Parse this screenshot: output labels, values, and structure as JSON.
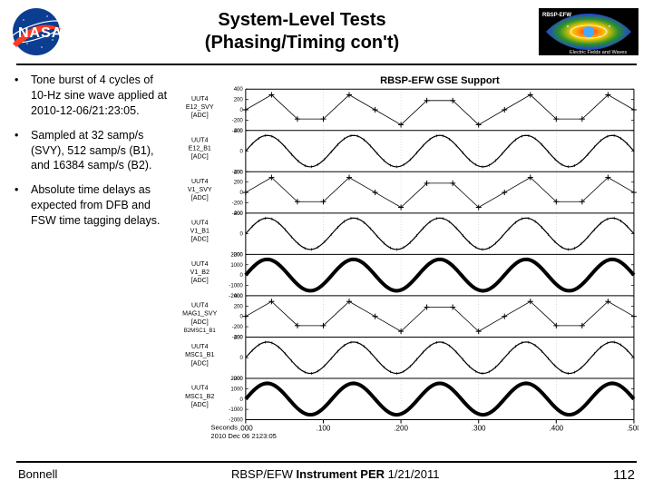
{
  "header": {
    "title_line1": "System-Level Tests",
    "title_line2": "(Phasing/Timing con't)"
  },
  "logos": {
    "nasa_text": "NASA",
    "mission_label_top": "RBSP-EFW",
    "mission_label_bottom": "Electric Fields and Waves"
  },
  "bullets": [
    "Tone burst of 4 cycles of 10-Hz sine wave applied at 2010-12-06/21:23:05.",
    "Sampled at 32 samp/s (SVY), 512 samp/s (B1), and 16384 samp/s (B2).",
    "Absolute time delays as expected from DFB and FSW time tagging delays."
  ],
  "chart": {
    "title": "RBSP-EFW GSE Support",
    "panels": [
      {
        "label_top": "UUT4",
        "label_bot": "E12_SVY",
        "unit": "[ADC]",
        "style": "sparse",
        "yticks": [
          -400,
          -200,
          0,
          200,
          400
        ]
      },
      {
        "label_top": "UUT4",
        "label_bot": "E12_B1",
        "unit": "[ADC]",
        "style": "wave",
        "yticks": [
          -200,
          0,
          200
        ]
      },
      {
        "label_top": "UUT4",
        "label_bot": "V1_SVY",
        "unit": "[ADC]",
        "style": "sparse",
        "yticks": [
          -400,
          -200,
          0,
          200,
          400
        ]
      },
      {
        "label_top": "UUT4",
        "label_bot": "V1_B1",
        "unit": "[ADC]",
        "style": "wave",
        "yticks": [
          -200,
          0,
          200
        ]
      },
      {
        "label_top": "UUT4",
        "label_bot": "V1_B2",
        "unit": "[ADC]",
        "style": "thick",
        "yticks": [
          -2000,
          -1000,
          0,
          1000,
          2000
        ]
      },
      {
        "label_top": "UUT4",
        "label_bot": "MAG1_SVY",
        "unit": "[ADC]",
        "unit2": "B2MSC1_B1",
        "style": "sparse",
        "yticks": [
          -400,
          -200,
          0,
          200,
          400
        ]
      },
      {
        "label_top": "UUT4",
        "label_bot": "MSC1_B1",
        "unit": "[ADC]",
        "style": "wave",
        "yticks": [
          -200,
          0,
          200
        ]
      },
      {
        "label_top": "UUT4",
        "label_bot": "MSC1_B2",
        "unit": "[ADC]",
        "style": "thick",
        "yticks": [
          -2000,
          -1000,
          0,
          1000,
          2000
        ]
      }
    ],
    "xaxis": {
      "label_line1": "Seconds",
      "label_line2": "2010 Dec 06 2123:05",
      "ticks": [
        ".000",
        ".100",
        ".200",
        ".300",
        ".400",
        ".500"
      ]
    },
    "colors": {
      "line": "#000000",
      "grid": "#bbbbbb",
      "bg": "#ffffff"
    }
  },
  "footer": {
    "author": "Bonnell",
    "center_pre": "RBSP/EFW ",
    "center_bold": "Instrument PER",
    "center_post": " 1/21/2011",
    "page": "112"
  }
}
